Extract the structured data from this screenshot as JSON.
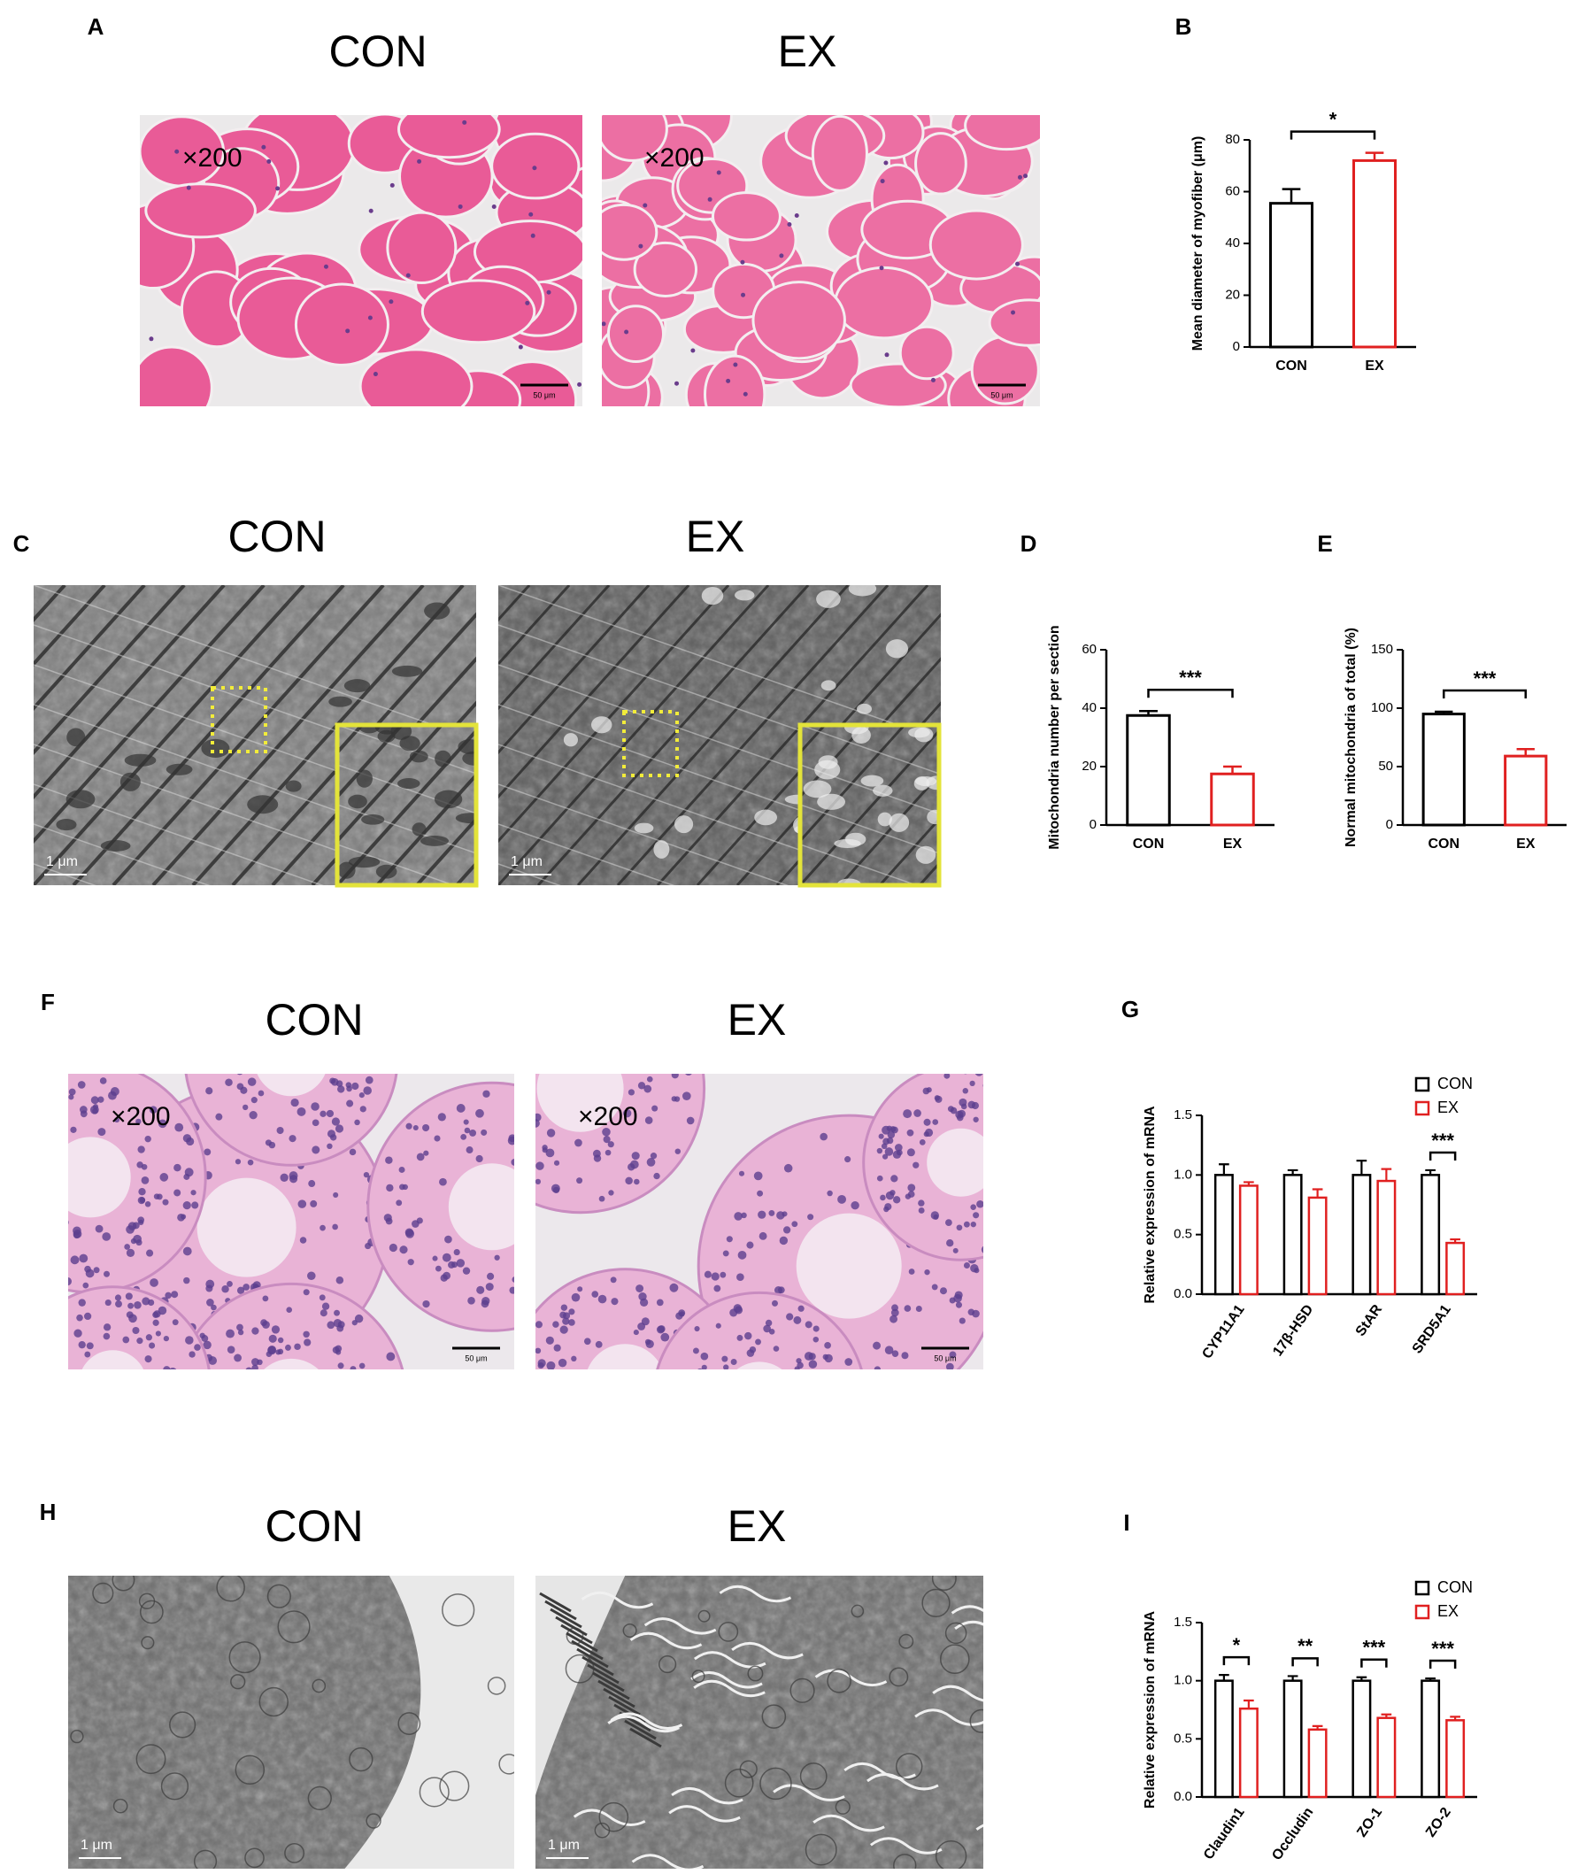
{
  "panels": [
    {
      "label": "A",
      "images": [
        {
          "title": "CON",
          "magnification": "×200",
          "scale_bar": "50 μm"
        },
        {
          "title": "EX",
          "magnification": "×200",
          "scale_bar": "50 μm"
        }
      ]
    },
    {
      "label": "C",
      "images": [
        {
          "title": "CON",
          "scale_bar": "1 μm"
        },
        {
          "title": "EX",
          "scale_bar": "1 μm"
        }
      ]
    },
    {
      "label": "F",
      "images": [
        {
          "title": "CON",
          "magnification": "×200",
          "scale_bar": "50 μm"
        },
        {
          "title": "EX",
          "magnification": "×200",
          "scale_bar": "50 μm"
        }
      ]
    },
    {
      "label": "H",
      "images": [
        {
          "title": "CON",
          "scale_bar": "1 μm"
        },
        {
          "title": "EX",
          "scale_bar": "1 μm"
        }
      ]
    }
  ],
  "chart_data": [
    {
      "type": "bar",
      "label": "B",
      "ylabel": "Mean diameter of myofiber (μm)",
      "categories": [
        "CON",
        "EX"
      ],
      "values": [
        55.5,
        72
      ],
      "errors": [
        5.5,
        3
      ],
      "colors": [
        "#000000",
        "#e02020"
      ],
      "ylim": [
        0,
        80
      ],
      "yticks": [
        0,
        20,
        40,
        60,
        80
      ],
      "significance": "*"
    },
    {
      "type": "bar",
      "label": "D",
      "ylabel": "Mitochondria number per section",
      "categories": [
        "CON",
        "EX"
      ],
      "values": [
        37.5,
        17.5
      ],
      "errors": [
        1.5,
        2.5
      ],
      "colors": [
        "#000000",
        "#e02020"
      ],
      "ylim": [
        0,
        60
      ],
      "yticks": [
        0,
        20,
        40,
        60
      ],
      "significance": "***"
    },
    {
      "type": "bar",
      "label": "E",
      "ylabel": "Normal mitochondria of total (%)",
      "categories": [
        "CON",
        "EX"
      ],
      "values": [
        95,
        59
      ],
      "errors": [
        2,
        6
      ],
      "colors": [
        "#000000",
        "#e02020"
      ],
      "ylim": [
        0,
        150
      ],
      "yticks": [
        0,
        50,
        100,
        150
      ],
      "significance": "***"
    },
    {
      "type": "grouped-bar",
      "label": "G",
      "ylabel": "Relative expression of mRNA",
      "categories": [
        "CYP11A1",
        "17β-HSD",
        "StAR",
        "SRD5A1"
      ],
      "series": [
        {
          "name": "CON",
          "color": "#000000",
          "values": [
            1,
            1,
            1,
            1
          ],
          "errors": [
            0.09,
            0.04,
            0.12,
            0.04
          ]
        },
        {
          "name": "EX",
          "color": "#e02020",
          "values": [
            0.91,
            0.81,
            0.95,
            0.43
          ],
          "errors": [
            0.03,
            0.07,
            0.1,
            0.03
          ]
        }
      ],
      "ylim": [
        0,
        1.5
      ],
      "yticks": [
        {
          "value": 0,
          "label": "0.0"
        },
        {
          "value": 0.5,
          "label": "0.5"
        },
        {
          "value": 1,
          "label": "1.0"
        },
        {
          "value": 1.5,
          "label": "1.5"
        }
      ],
      "significance": [
        null,
        null,
        null,
        "***"
      ],
      "legend": "upper right"
    },
    {
      "type": "grouped-bar",
      "label": "I",
      "ylabel": "Relative expression of mRNA",
      "categories": [
        "Claudin1",
        "Occludin",
        "ZO-1",
        "ZO-2"
      ],
      "series": [
        {
          "name": "CON",
          "color": "#000000",
          "values": [
            1,
            1,
            1,
            1
          ],
          "errors": [
            0.05,
            0.04,
            0.03,
            0.02
          ]
        },
        {
          "name": "EX",
          "color": "#e02020",
          "values": [
            0.76,
            0.58,
            0.68,
            0.66
          ],
          "errors": [
            0.07,
            0.03,
            0.03,
            0.03
          ]
        }
      ],
      "ylim": [
        0,
        1.5
      ],
      "yticks": [
        {
          "value": 0,
          "label": "0.0"
        },
        {
          "value": 0.5,
          "label": "0.5"
        },
        {
          "value": 1,
          "label": "1.0"
        },
        {
          "value": 1.5,
          "label": "1.5"
        }
      ],
      "significance": [
        "*",
        "**",
        "***",
        "***"
      ],
      "legend": "upper right"
    }
  ]
}
